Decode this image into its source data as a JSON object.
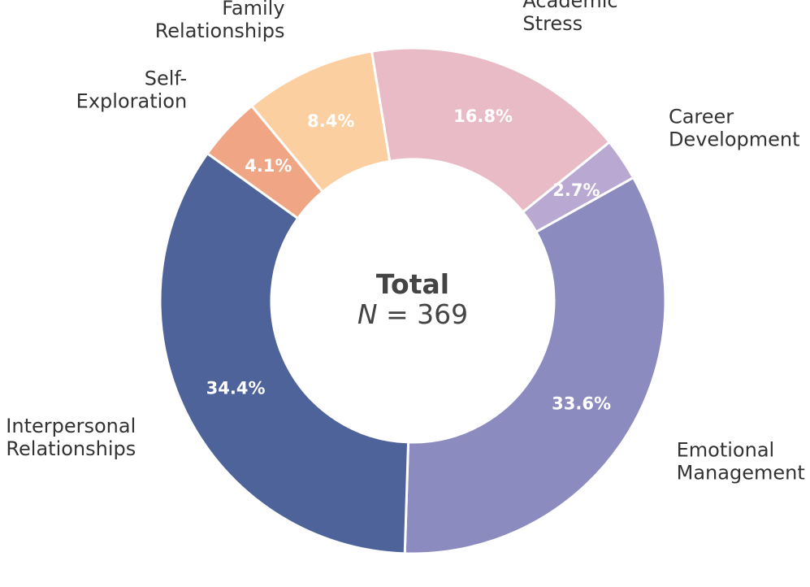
{
  "chart_data": {
    "type": "pie",
    "variant": "donut",
    "center_title": "Total",
    "center_n_symbol": "N",
    "center_n_equals": " = ",
    "center_n_value": "369",
    "total": 369,
    "slices": [
      {
        "name": "Interpersonal Relationships",
        "label_lines": [
          "Interpersonal",
          "Relationships"
        ],
        "percent": 34.4,
        "percent_label": "34.4%",
        "color": "#4e6399"
      },
      {
        "name": "Self-Exploration",
        "label_lines": [
          "Self-",
          "Exploration"
        ],
        "percent": 4.1,
        "percent_label": "4.1%",
        "color": "#f0a685"
      },
      {
        "name": "Family Relationships",
        "label_lines": [
          "Family",
          "Relationships"
        ],
        "percent": 8.4,
        "percent_label": "8.4%",
        "color": "#fccfa0"
      },
      {
        "name": "Academic Stress",
        "label_lines": [
          "Academic",
          "Stress"
        ],
        "percent": 16.8,
        "percent_label": "16.8%",
        "color": "#e8bbc6"
      },
      {
        "name": "Career Development",
        "label_lines": [
          "Career",
          "Development"
        ],
        "percent": 2.7,
        "percent_label": "2.7%",
        "color": "#b9a8d1"
      },
      {
        "name": "Emotional Management",
        "label_lines": [
          "Emotional",
          "Management"
        ],
        "percent": 33.6,
        "percent_label": "33.6%",
        "color": "#8b8bbf"
      }
    ],
    "start_slice": "Emotional Management",
    "direction": "counterclockwise",
    "legend": "none"
  }
}
